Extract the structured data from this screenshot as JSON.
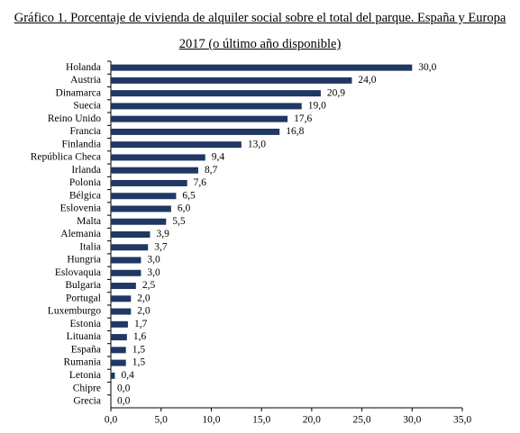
{
  "chart_data": {
    "type": "barh",
    "title": "Gráfico 1. Porcentaje de vivienda de alquiler social sobre el total del parque. España y Europa 2017 (o último año disponible)",
    "categories": [
      "Holanda",
      "Austria",
      "Dinamarca",
      "Suecia",
      "Reino Unido",
      "Francia",
      "Finlandia",
      "República Checa",
      "Irlanda",
      "Polonia",
      "Bélgica",
      "Eslovenia",
      "Malta",
      "Alemania",
      "Italia",
      "Hungria",
      "Eslovaquia",
      "Bulgaria",
      "Portugal",
      "Luxemburgo",
      "Estonia",
      "Lituania",
      "España",
      "Rumania",
      "Letonia",
      "Chipre",
      "Grecia"
    ],
    "values": [
      30.0,
      24.0,
      20.9,
      19.0,
      17.6,
      16.8,
      13.0,
      9.4,
      8.7,
      7.6,
      6.5,
      6.0,
      5.5,
      3.9,
      3.7,
      3.0,
      3.0,
      2.5,
      2.0,
      2.0,
      1.7,
      1.6,
      1.5,
      1.5,
      0.4,
      0.0,
      0.0
    ],
    "value_labels": [
      "30,0",
      "24,0",
      "20,9",
      "19,0",
      "17,6",
      "16,8",
      "13,0",
      "9,4",
      "8,7",
      "7,6",
      "6,5",
      "6,0",
      "5,5",
      "3,9",
      "3,7",
      "3,0",
      "3,0",
      "2,5",
      "2,0",
      "2,0",
      "1,7",
      "1,6",
      "1,5",
      "1,5",
      "0,4",
      "0,0",
      "0,0"
    ],
    "color": "#1f3864",
    "xlim": [
      0,
      35
    ],
    "xticks": [
      {
        "value": 0,
        "label": "0,0"
      },
      {
        "value": 5,
        "label": "5,0"
      },
      {
        "value": 10,
        "label": "10,0"
      },
      {
        "value": 15,
        "label": "15,0"
      },
      {
        "value": 20,
        "label": "20,0"
      },
      {
        "value": 25,
        "label": "25,0"
      },
      {
        "value": 30,
        "label": "30,0"
      },
      {
        "value": 35,
        "label": "35,0"
      }
    ],
    "grid": false
  }
}
